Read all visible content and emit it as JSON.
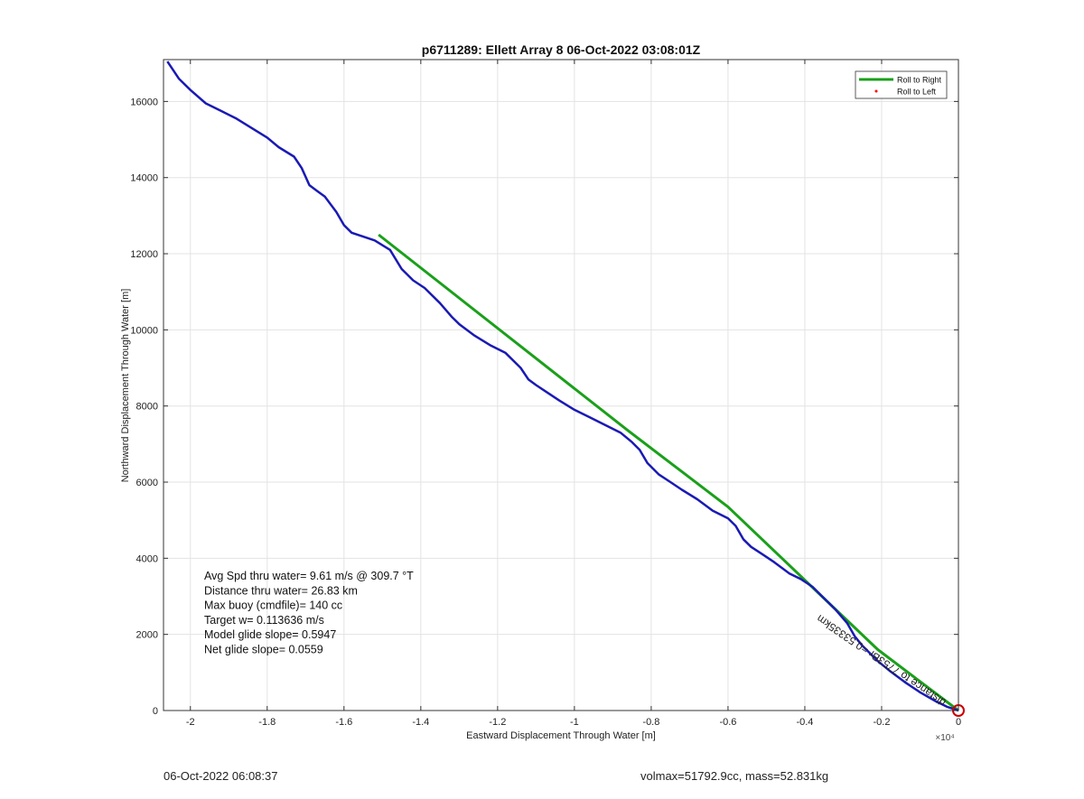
{
  "chart_data": {
    "type": "line",
    "title": "p6711289: Ellett Array 8 06-Oct-2022 03:08:01Z",
    "xlabel": "Eastward Displacement Through Water [m]",
    "ylabel": "Northward Displacement Through Water [m]",
    "x_exponent_label": "×10⁴",
    "xlim": [
      -2.07,
      0
    ],
    "ylim": [
      0,
      17100
    ],
    "x_ticks": [
      -2,
      -1.8,
      -1.6,
      -1.4,
      -1.2,
      -1,
      -0.8,
      -0.6,
      -0.4,
      -0.2,
      0
    ],
    "x_tick_labels": [
      "-2",
      "-1.8",
      "-1.6",
      "-1.4",
      "-1.2",
      "-1",
      "-0.8",
      "-0.6",
      "-0.4",
      "-0.2",
      "0"
    ],
    "y_ticks": [
      0,
      2000,
      4000,
      6000,
      8000,
      10000,
      12000,
      14000,
      16000
    ],
    "y_tick_labels": [
      "0",
      "2000",
      "4000",
      "6000",
      "8000",
      "10000",
      "12000",
      "14000",
      "16000"
    ],
    "grid": true,
    "legend_placement": "top-right",
    "legend": [
      {
        "name": "Roll to Right",
        "color": "#1aa01a",
        "marker": "line"
      },
      {
        "name": "Roll to Left",
        "color": "#ff0000",
        "marker": "dot"
      }
    ],
    "series": [
      {
        "name": "Roll to Right",
        "color": "#1aa01a",
        "x": [
          -1.51,
          -0.86,
          -0.6,
          -0.21,
          0
        ],
        "y": [
          12500,
          7350,
          5350,
          1600,
          0
        ]
      },
      {
        "color": "#1a1ab4",
        "x": [
          -2.06,
          -2.03,
          -2.0,
          -1.96,
          -1.92,
          -1.88,
          -1.84,
          -1.8,
          -1.77,
          -1.73,
          -1.71,
          -1.69,
          -1.67,
          -1.65,
          -1.62,
          -1.6,
          -1.58,
          -1.55,
          -1.52,
          -1.48,
          -1.45,
          -1.42,
          -1.39,
          -1.35,
          -1.32,
          -1.3,
          -1.26,
          -1.22,
          -1.18,
          -1.14,
          -1.12,
          -1.1,
          -1.07,
          -1.04,
          -1.0,
          -0.96,
          -0.92,
          -0.88,
          -0.85,
          -0.83,
          -0.81,
          -0.78,
          -0.75,
          -0.72,
          -0.68,
          -0.64,
          -0.6,
          -0.58,
          -0.56,
          -0.54,
          -0.51,
          -0.48,
          -0.44,
          -0.41,
          -0.38,
          -0.35,
          -0.32,
          -0.29,
          -0.27,
          -0.25,
          -0.23,
          -0.21,
          -0.18,
          -0.14,
          -0.1,
          -0.06,
          -0.03,
          0
        ],
        "y": [
          17050,
          16600,
          16300,
          15950,
          15750,
          15550,
          15300,
          15050,
          14800,
          14550,
          14250,
          13800,
          13650,
          13500,
          13100,
          12750,
          12550,
          12450,
          12350,
          12100,
          11600,
          11300,
          11100,
          10700,
          10350,
          10150,
          9850,
          9600,
          9400,
          9000,
          8700,
          8550,
          8350,
          8150,
          7900,
          7700,
          7500,
          7300,
          7050,
          6850,
          6500,
          6200,
          6000,
          5800,
          5550,
          5250,
          5050,
          4850,
          4500,
          4300,
          4100,
          3900,
          3600,
          3450,
          3250,
          2950,
          2650,
          2300,
          1950,
          1700,
          1500,
          1300,
          1050,
          750,
          480,
          250,
          100,
          0
        ]
      }
    ],
    "annotations": [
      "Avg Spd thru water=  9.61 m/s @ 309.7 °T",
      "Distance thru water= 26.83 km",
      "Max buoy (cmdfile)= 140 cc",
      "Target w= 0.113636 m/s",
      "Model glide slope= 0.5947",
      "Net glide slope= 0.0559"
    ],
    "rotated_annotation": "distance to 7753Br =0.53335km",
    "end_marker": {
      "x": 0,
      "y": 0,
      "color": "#cc0000"
    }
  },
  "footer": {
    "left": "06-Oct-2022 06:08:37",
    "right": "volmax=51792.9cc, mass=52.831kg"
  }
}
